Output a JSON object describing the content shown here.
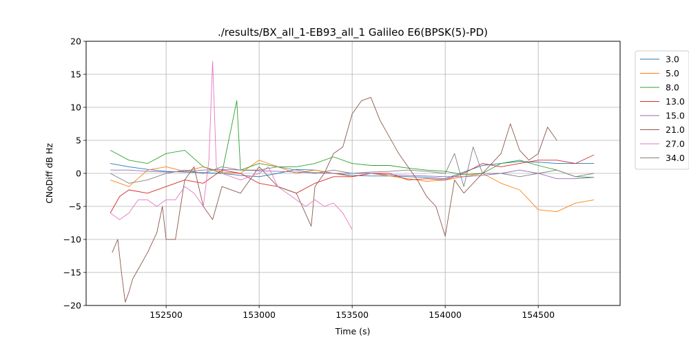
{
  "chart_data": {
    "type": "line",
    "title": "./results/BX_all_1-EB93_all_1 Galileo E6(BPSK(5)-PD)",
    "xlabel": "Time (s)",
    "ylabel": "CNoDiff dB Hz",
    "xlim": [
      152070,
      154940
    ],
    "ylim": [
      -20,
      20
    ],
    "xticks": [
      152500,
      153000,
      153500,
      154000,
      154500
    ],
    "xtick_labels": [
      "152500",
      "153000",
      "153500",
      "154000",
      "154500"
    ],
    "yticks": [
      -20,
      -15,
      -10,
      -5,
      0,
      5,
      10,
      15,
      20
    ],
    "ytick_labels": [
      "−20",
      "−15",
      "−10",
      "−5",
      "0",
      "5",
      "10",
      "15",
      "20"
    ],
    "grid": true,
    "legend_position": "outside-right-top",
    "series": [
      {
        "name": "3.0",
        "color": "#1f77b4",
        "x": [
          152200,
          152300,
          152400,
          152500,
          152600,
          152700,
          152800,
          152900,
          153000,
          153100,
          153200,
          153300,
          153400,
          153500,
          153600,
          153700,
          153800,
          153900,
          154000,
          154100,
          154200,
          154300,
          154400,
          154500,
          154600,
          154700,
          154800
        ],
        "y": [
          1.5,
          1.0,
          0.6,
          0.3,
          0.2,
          0.1,
          0.0,
          -0.3,
          -0.5,
          0.0,
          0.6,
          0.5,
          0.0,
          -0.3,
          -0.4,
          -0.4,
          -0.5,
          -0.6,
          -0.8,
          0.2,
          1.2,
          1.5,
          1.8,
          1.7,
          1.5,
          1.5,
          1.5
        ]
      },
      {
        "name": "5.0",
        "color": "#ff7f0e",
        "x": [
          152200,
          152300,
          152400,
          152500,
          152600,
          152700,
          152800,
          152900,
          153000,
          153100,
          153200,
          153300,
          153400,
          153500,
          153600,
          153700,
          153800,
          153900,
          154000,
          154100,
          154200,
          154300,
          154400,
          154500,
          154600,
          154700,
          154800
        ],
        "y": [
          -1.0,
          -2.0,
          0.5,
          1.0,
          0.3,
          1.0,
          0.2,
          0.0,
          2.0,
          1.0,
          0.0,
          0.5,
          0.0,
          -0.5,
          0.0,
          -0.4,
          -0.8,
          -1.2,
          -1.0,
          -0.5,
          0.0,
          -1.5,
          -2.5,
          -5.5,
          -5.8,
          -4.5,
          -4.0
        ]
      },
      {
        "name": "8.0",
        "color": "#2ca02c",
        "x": [
          152200,
          152300,
          152400,
          152500,
          152600,
          152700,
          152800,
          152880,
          152900,
          153000,
          153100,
          153200,
          153300,
          153400,
          153500,
          153600,
          153700,
          153800,
          153900,
          154000,
          154100,
          154200,
          154300,
          154400,
          154500,
          154600,
          154700,
          154800
        ],
        "y": [
          3.5,
          2.0,
          1.5,
          3.0,
          3.5,
          1.0,
          0.0,
          11.0,
          0.5,
          1.5,
          1.0,
          1.0,
          1.5,
          2.5,
          1.5,
          1.2,
          1.2,
          0.8,
          0.5,
          0.3,
          -0.2,
          0.0,
          1.5,
          2.0,
          1.2,
          0.5,
          -0.5,
          -0.6
        ]
      },
      {
        "name": "13.0",
        "color": "#d62728",
        "x": [
          152200,
          152250,
          152300,
          152400,
          152500,
          152600,
          152700,
          152800,
          152900,
          153000,
          153100,
          153200,
          153300,
          153400,
          153500,
          153600,
          153700,
          153800,
          153900,
          154000,
          154100,
          154200,
          154300,
          154400,
          154500,
          154600,
          154700,
          154800
        ],
        "y": [
          -6.0,
          -3.5,
          -2.5,
          -3.0,
          -2.0,
          -1.0,
          -1.5,
          0.5,
          0.0,
          -1.5,
          -2.0,
          -3.0,
          -1.5,
          -0.5,
          -0.5,
          0.0,
          0.0,
          -1.0,
          -0.8,
          -1.0,
          0.0,
          1.5,
          1.0,
          1.5,
          2.0,
          2.0,
          1.5,
          2.8
        ]
      },
      {
        "name": "15.0",
        "color": "#9467bd",
        "x": [
          152200,
          152300,
          152400,
          152500,
          152600,
          152700,
          152800,
          152900,
          153000,
          153100,
          153200,
          153300,
          153400,
          153500,
          153600,
          153700,
          153800,
          153900,
          154000,
          154100,
          154200,
          154300,
          154400,
          154500,
          154600,
          154700,
          154800
        ],
        "y": [
          0.5,
          0.5,
          0.3,
          0.2,
          0.3,
          0.5,
          0.6,
          0.5,
          0.4,
          0.3,
          0.2,
          0.1,
          0.0,
          0.0,
          0.0,
          -0.2,
          -0.3,
          -0.4,
          -0.5,
          -0.5,
          -0.3,
          0.0,
          0.5,
          0.0,
          -0.8,
          -0.8,
          -0.6
        ]
      },
      {
        "name": "21.0",
        "color": "#8c564b",
        "x": [
          152210,
          152240,
          152260,
          152280,
          152300,
          152320,
          152360,
          152400,
          152450,
          152480,
          152500,
          152550,
          152600,
          152650,
          152700,
          152750,
          152800,
          152900,
          153000,
          153100,
          153200,
          153280,
          153300,
          153350,
          153400,
          153450,
          153500,
          153550,
          153600,
          153650,
          153750,
          153850,
          153900,
          153950,
          154000,
          154050,
          154100,
          154200,
          154300,
          154350,
          154400,
          154450,
          154500,
          154550,
          154600
        ],
        "y": [
          -12.0,
          -10.0,
          -15.0,
          -19.5,
          -18.0,
          -16.0,
          -14.0,
          -12.0,
          -9.0,
          -5.0,
          -10.0,
          -10.0,
          -1.0,
          1.0,
          -5.0,
          -7.0,
          -2.0,
          -3.0,
          1.0,
          -2.0,
          -3.0,
          -8.0,
          -2.0,
          0.0,
          3.0,
          4.0,
          9.0,
          11.0,
          11.5,
          8.0,
          3.0,
          -1.0,
          -3.5,
          -5.0,
          -9.5,
          -1.0,
          -3.0,
          0.0,
          3.0,
          7.5,
          3.5,
          2.0,
          3.0,
          7.0,
          5.0
        ]
      },
      {
        "name": "27.0",
        "color": "#e377c2",
        "x": [
          152200,
          152250,
          152300,
          152350,
          152400,
          152450,
          152500,
          152550,
          152600,
          152650,
          152700,
          152730,
          152750,
          152770,
          152800,
          152900,
          153000,
          153050,
          153100,
          153150,
          153200,
          153250,
          153300,
          153350,
          153400,
          153450,
          153500
        ],
        "y": [
          -6.0,
          -7.0,
          -6.0,
          -4.0,
          -4.0,
          -5.0,
          -4.0,
          -4.0,
          -2.0,
          -3.0,
          -5.0,
          2.0,
          17.0,
          1.0,
          0.0,
          -1.0,
          0.0,
          1.0,
          -2.0,
          -3.0,
          -4.0,
          -5.0,
          -4.0,
          -5.0,
          -4.5,
          -6.0,
          -8.5
        ]
      },
      {
        "name": "34.0",
        "color": "#7f7f7f",
        "x": [
          152200,
          152300,
          152400,
          152500,
          152600,
          152700,
          152800,
          152900,
          153000,
          153100,
          153200,
          153300,
          153400,
          153500,
          153600,
          153700,
          153800,
          153900,
          154000,
          154050,
          154100,
          154150,
          154200,
          154300,
          154400,
          154500,
          154600,
          154700,
          154800
        ],
        "y": [
          0.0,
          -1.5,
          -1.0,
          0.0,
          0.5,
          0.0,
          1.0,
          0.5,
          0.5,
          1.0,
          0.5,
          0.0,
          0.5,
          0.0,
          0.2,
          0.3,
          0.5,
          0.3,
          0.0,
          3.0,
          -2.0,
          4.0,
          0.0,
          0.0,
          -0.5,
          0.0,
          0.5,
          -0.5,
          0.0
        ]
      }
    ]
  }
}
